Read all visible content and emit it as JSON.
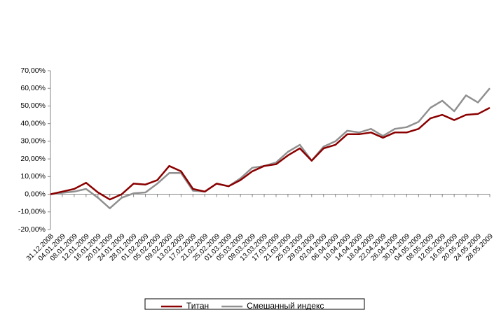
{
  "chart_data": {
    "type": "line",
    "categories": [
      "31.12.2008",
      "04.01.2009",
      "08.01.2009",
      "12.01.2009",
      "16.01.2009",
      "20.01.2009",
      "24.01.2009",
      "28.01.2009",
      "01.02.2009",
      "05.02.2009",
      "09.02.2009",
      "13.02.2009",
      "17.02.2009",
      "21.02.2009",
      "25.02.2009",
      "01.03.2009",
      "05.03.2009",
      "09.03.2009",
      "13.03.2009",
      "17.03.2009",
      "21.03.2009",
      "25.03.2009",
      "29.03.2009",
      "02.04.2009",
      "06.04.2009",
      "10.04.2009",
      "14.04.2009",
      "18.04.2009",
      "22.04.2009",
      "26.04.2009",
      "30.04.2009",
      "04.05.2009",
      "08.05.2009",
      "12.05.2009",
      "16.05.2009",
      "20.05.2009",
      "24.05.2009",
      "28.05.2009"
    ],
    "series": [
      {
        "name": "Титан",
        "color": "#8b0000",
        "values": [
          0,
          1.5,
          3,
          6.5,
          1,
          -3,
          0,
          6,
          5.5,
          8,
          16,
          13,
          3,
          1.5,
          6,
          4.5,
          8,
          13,
          16,
          17,
          22,
          26,
          19,
          26,
          28,
          34,
          34,
          35,
          32,
          35,
          35,
          37,
          43,
          45,
          42,
          45,
          45.5,
          49
        ]
      },
      {
        "name": "Смешанный индекс",
        "color": "#909090",
        "values": [
          0,
          0.8,
          1.5,
          3,
          -2,
          -8,
          -2,
          0.5,
          1,
          6,
          12,
          12,
          2,
          1.5,
          6,
          4.5,
          9,
          15,
          16,
          18,
          24,
          28,
          19,
          27,
          30,
          36,
          35,
          37,
          33,
          37,
          38,
          41,
          49,
          53,
          47,
          56,
          52,
          60
        ]
      }
    ],
    "ylim": [
      -20,
      70
    ],
    "yticks": [
      {
        "value": -20,
        "label": "-20,00%"
      },
      {
        "value": -10,
        "label": "-10,00%"
      },
      {
        "value": 0,
        "label": "0,00%"
      },
      {
        "value": 10,
        "label": "10,00%"
      },
      {
        "value": 20,
        "label": "20,00%"
      },
      {
        "value": 30,
        "label": "30,00%"
      },
      {
        "value": 40,
        "label": "40,00%"
      },
      {
        "value": 50,
        "label": "50,00%"
      },
      {
        "value": 60,
        "label": "60,00%"
      },
      {
        "value": 70,
        "label": "70,00%"
      }
    ],
    "grid": false
  }
}
